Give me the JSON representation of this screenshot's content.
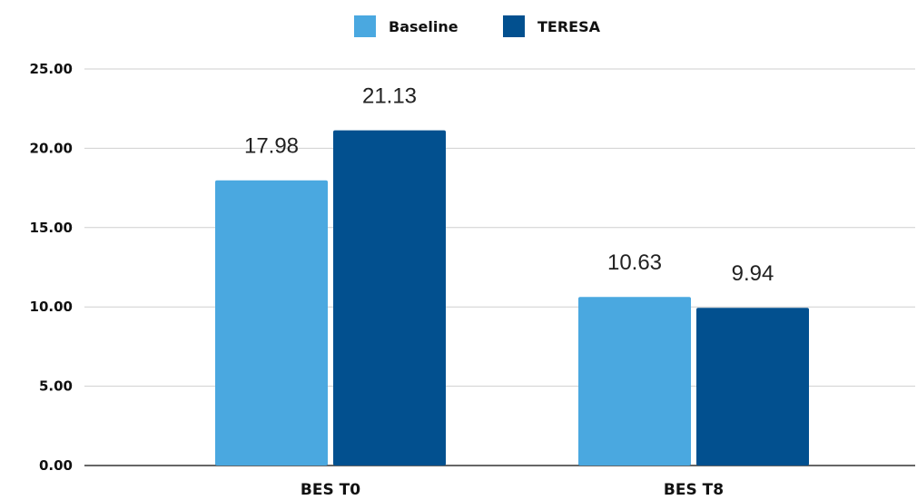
{
  "chart_data": {
    "type": "bar",
    "categories": [
      "BES T0",
      "BES T8"
    ],
    "series": [
      {
        "name": "Baseline",
        "values": [
          17.98,
          10.63
        ],
        "value_labels": [
          "17.98",
          "10.63"
        ],
        "color": "#4aa8e0"
      },
      {
        "name": "TERESA",
        "values": [
          21.13,
          9.94
        ],
        "value_labels": [
          "21.13",
          "9.94"
        ],
        "color": "#02508f"
      }
    ],
    "title": "",
    "xlabel": "",
    "ylabel": "",
    "ylim": [
      0,
      25
    ],
    "yticks": [
      0,
      5,
      10,
      15,
      20,
      25
    ],
    "ytick_labels": [
      "0.00",
      "5.00",
      "10.00",
      "15.00",
      "20.00",
      "25.00"
    ],
    "grid": true,
    "legend_position": "top-center"
  }
}
